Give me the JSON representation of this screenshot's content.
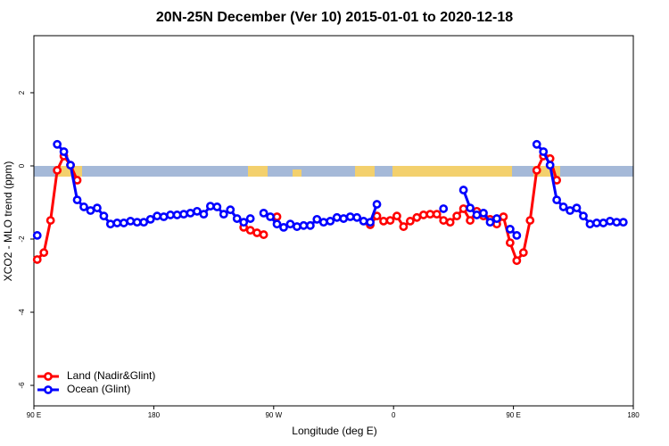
{
  "chart_data": {
    "type": "line",
    "title": "20N-25N December (Ver 10)   2015-01-01 to 2020-12-18",
    "x_label": "Longitude (deg E)",
    "y_label": "XCO2 - MLO trend (ppm)",
    "x": [
      92.5,
      97.5,
      102.5,
      107.5,
      112.5,
      117.5,
      122.5,
      127.5,
      132.5,
      137.5,
      142.5,
      147.5,
      152.5,
      157.5,
      162.5,
      167.5,
      172.5,
      177.5,
      182.5,
      187.5,
      192.5,
      197.5,
      202.5,
      207.5,
      212.5,
      217.5,
      222.5,
      227.5,
      232.5,
      237.5,
      242.5,
      247.5,
      252.5,
      257.5,
      262.5,
      267.5,
      272.5,
      277.5,
      282.5,
      287.5,
      292.5,
      297.5,
      302.5,
      307.5,
      312.5,
      317.5,
      322.5,
      327.5,
      332.5,
      337.5,
      342.5,
      347.5,
      352.5,
      357.5,
      362.5,
      367.5,
      372.5,
      377.5,
      382.5,
      387.5,
      392.5,
      397.5,
      402.5,
      407.5,
      412.5,
      417.5,
      422.5,
      427.5,
      432.5,
      437.5,
      442.5,
      447.5,
      452.5,
      457.5,
      462.5,
      467.5,
      472.5,
      477.5,
      482.5,
      487.5,
      492.5,
      497.5,
      502.5,
      507.5,
      512.5,
      517.5,
      522.5,
      527.5,
      532.5
    ],
    "series": [
      {
        "name": "Land (Nadir&Glint)",
        "color": "#ff0000",
        "values": [
          -2.56,
          -2.37,
          -1.49,
          -0.12,
          0.27,
          0.02,
          -0.39,
          null,
          null,
          null,
          null,
          null,
          null,
          null,
          null,
          null,
          null,
          null,
          null,
          null,
          null,
          null,
          null,
          null,
          null,
          null,
          null,
          null,
          null,
          null,
          null,
          -1.68,
          -1.76,
          -1.83,
          -1.88,
          null,
          -1.39,
          null,
          null,
          null,
          null,
          null,
          null,
          null,
          null,
          null,
          null,
          null,
          null,
          null,
          -1.61,
          -1.37,
          -1.51,
          -1.49,
          -1.37,
          -1.66,
          -1.51,
          -1.41,
          -1.34,
          -1.32,
          -1.32,
          -1.49,
          -1.54,
          -1.37,
          -1.17,
          -1.49,
          -1.24,
          -1.37,
          -1.46,
          -1.59,
          -1.39,
          -2.1,
          -2.59,
          -2.37,
          -1.49,
          -0.12,
          0.27,
          0.2,
          -0.39,
          null,
          null,
          null,
          null,
          null,
          null,
          null,
          null,
          null,
          null
        ]
      },
      {
        "name": "Ocean (Glint)",
        "color": "#0000ff",
        "values": [
          -1.9,
          null,
          null,
          0.59,
          0.39,
          0.02,
          -0.93,
          -1.12,
          -1.22,
          -1.15,
          -1.37,
          -1.59,
          -1.56,
          -1.56,
          -1.51,
          -1.54,
          -1.54,
          -1.46,
          -1.37,
          -1.39,
          -1.34,
          -1.34,
          -1.32,
          -1.29,
          -1.24,
          -1.32,
          -1.1,
          -1.12,
          -1.32,
          -1.2,
          -1.44,
          -1.54,
          -1.44,
          null,
          -1.29,
          -1.39,
          -1.59,
          -1.68,
          -1.59,
          -1.66,
          -1.63,
          -1.63,
          -1.46,
          -1.54,
          -1.51,
          -1.41,
          -1.44,
          -1.39,
          -1.41,
          -1.51,
          -1.54,
          -1.05,
          null,
          null,
          null,
          null,
          null,
          null,
          null,
          null,
          null,
          -1.17,
          null,
          null,
          -0.66,
          -1.15,
          -1.34,
          -1.29,
          -1.54,
          -1.44,
          null,
          -1.73,
          -1.9,
          null,
          null,
          0.59,
          0.39,
          0.02,
          -0.93,
          -1.12,
          -1.22,
          -1.15,
          -1.37,
          -1.59,
          -1.56,
          -1.56,
          -1.51,
          -1.54,
          -1.54
        ]
      }
    ],
    "xlim": [
      90,
      540
    ],
    "xticks": [
      {
        "value": 90,
        "label": "90 E"
      },
      180,
      {
        "value": 270,
        "label": "90 W"
      },
      {
        "value": 360,
        "label": "0"
      },
      {
        "value": 450,
        "label": "90 E"
      },
      {
        "value": 540,
        "label": "180"
      }
    ],
    "ylim": [
      -6.56,
      3.56
    ],
    "yticks": [
      2,
      0,
      -2,
      -4,
      -6
    ],
    "legend": "bottom-left"
  }
}
